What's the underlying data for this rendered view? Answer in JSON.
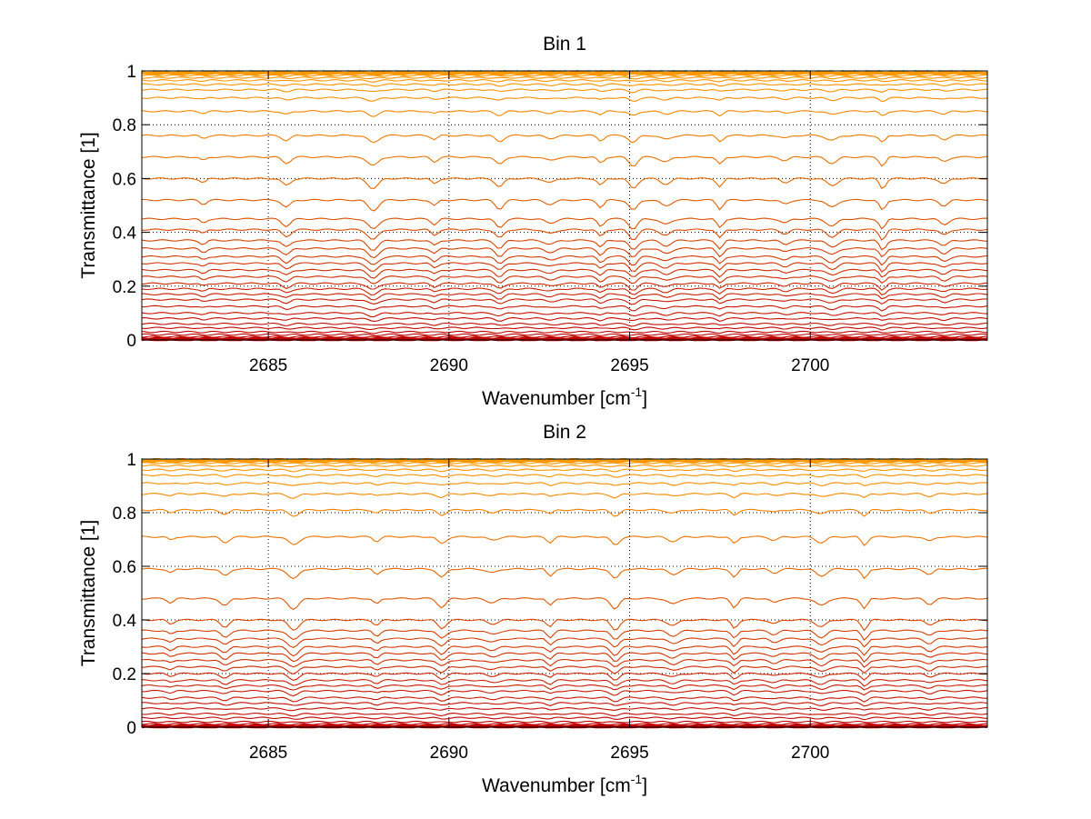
{
  "chart_data": [
    {
      "type": "line",
      "title": "Bin 1",
      "xlabel": "Wavenumber [cm",
      "xlabel_sup": "-1",
      "xlabel_suffix": "]",
      "ylabel": "Transmittance [1]",
      "xlim": [
        2681.5,
        2704.9
      ],
      "ylim": [
        0,
        1
      ],
      "xticks": [
        2685,
        2690,
        2695,
        2700
      ],
      "xtick_labels": [
        "2685",
        "2690",
        "2695",
        "2700"
      ],
      "yticks": [
        0,
        0.2,
        0.4,
        0.6,
        0.8,
        1
      ],
      "ytick_labels": [
        "0",
        "0.2",
        "0.4",
        "0.6",
        "0.8",
        "1"
      ],
      "grid": "dotted",
      "dips": [
        2683.2,
        2685.5,
        2687.9,
        2689.6,
        2691.4,
        2692.8,
        2694.2,
        2695.1,
        2696.0,
        2697.5,
        2699.3,
        2700.6,
        2702.0,
        2703.7
      ],
      "series_levels": [
        0.0,
        0.003,
        0.006,
        0.012,
        0.02,
        0.03,
        0.045,
        0.06,
        0.08,
        0.1,
        0.125,
        0.15,
        0.17,
        0.19,
        0.21,
        0.235,
        0.26,
        0.285,
        0.31,
        0.34,
        0.37,
        0.41,
        0.45,
        0.52,
        0.6,
        0.68,
        0.76,
        0.85,
        0.9,
        0.93,
        0.95,
        0.965,
        0.975,
        0.983,
        0.99,
        0.995
      ],
      "series_colors": {
        "low": "#bf0000",
        "mid": "#e05a00",
        "high": "#ff9900",
        "noise": "#33c8e0"
      }
    },
    {
      "type": "line",
      "title": "Bin 2",
      "xlabel": "Wavenumber [cm",
      "xlabel_sup": "-1",
      "xlabel_suffix": "]",
      "ylabel": "Transmittance [1]",
      "xlim": [
        2681.5,
        2704.9
      ],
      "ylim": [
        0,
        1
      ],
      "xticks": [
        2685,
        2690,
        2695,
        2700
      ],
      "xtick_labels": [
        "2685",
        "2690",
        "2695",
        "2700"
      ],
      "yticks": [
        0,
        0.2,
        0.4,
        0.6,
        0.8,
        1
      ],
      "ytick_labels": [
        "0",
        "0.2",
        "0.4",
        "0.6",
        "0.8",
        "1"
      ],
      "grid": "dotted",
      "dips": [
        2682.3,
        2683.8,
        2685.7,
        2688.0,
        2689.8,
        2691.2,
        2692.8,
        2694.6,
        2696.2,
        2697.9,
        2699.0,
        2700.3,
        2701.5,
        2703.3
      ],
      "series_levels": [
        0.0,
        0.003,
        0.006,
        0.012,
        0.02,
        0.035,
        0.05,
        0.07,
        0.09,
        0.11,
        0.135,
        0.155,
        0.175,
        0.2,
        0.225,
        0.25,
        0.275,
        0.3,
        0.33,
        0.36,
        0.4,
        0.48,
        0.59,
        0.71,
        0.81,
        0.87,
        0.91,
        0.94,
        0.96,
        0.975,
        0.985,
        0.992,
        0.997
      ],
      "series_colors": {
        "low": "#bf0000",
        "mid": "#e05a00",
        "high": "#ff9900",
        "noise": "#33c8e0"
      }
    }
  ]
}
